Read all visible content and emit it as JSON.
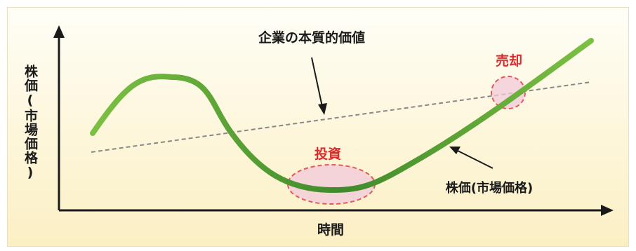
{
  "diagram": {
    "y_axis_label": "株価(市場価格)",
    "x_axis_label": "時間",
    "intrinsic_value_label": "企業の本質的価値",
    "stock_price_label": "株価(市場価格)",
    "buy_label": "投資",
    "sell_label": "売却",
    "colors": {
      "stock_line": "#4f9a2e",
      "value_line": "#888888",
      "highlight_fill": "#f2c9d9",
      "highlight_stroke": "#e35a5a",
      "label_red": "#d92b2b"
    }
  }
}
